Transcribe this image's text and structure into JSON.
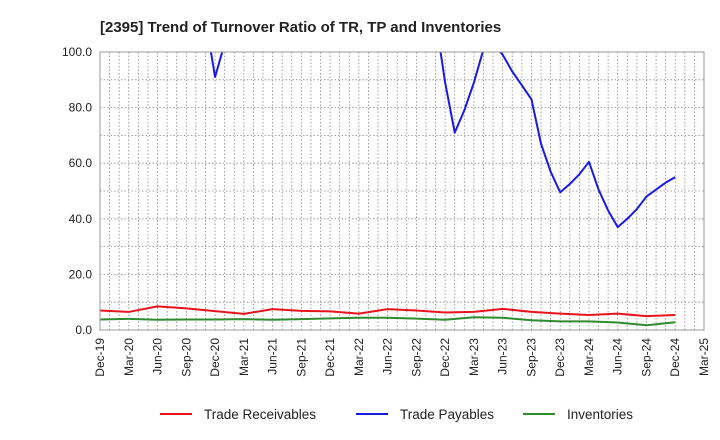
{
  "chart_data": {
    "type": "line",
    "title": "[2395]  Trend of Turnover Ratio of TR, TP and Inventories",
    "xlabel": "",
    "ylabel": "",
    "ylim": [
      0,
      100
    ],
    "yticks": [
      "0.0",
      "20.0",
      "40.0",
      "60.0",
      "80.0",
      "100.0"
    ],
    "xticks": [
      "Dec-19",
      "Mar-20",
      "Jun-20",
      "Sep-20",
      "Dec-20",
      "Mar-21",
      "Jun-21",
      "Sep-21",
      "Dec-21",
      "Mar-22",
      "Jun-22",
      "Sep-22",
      "Dec-22",
      "Mar-23",
      "Jun-23",
      "Sep-23",
      "Dec-23",
      "Mar-24",
      "Jun-24",
      "Sep-24",
      "Dec-24",
      "Mar-25"
    ],
    "grid": true,
    "legend_position": "bottom",
    "x": [
      "Dec-19",
      "Jan-20",
      "Feb-20",
      "Mar-20",
      "Apr-20",
      "May-20",
      "Jun-20",
      "Jul-20",
      "Aug-20",
      "Sep-20",
      "Oct-20",
      "Nov-20",
      "Dec-20",
      "Jan-21",
      "Feb-21",
      "Mar-21",
      "Apr-21",
      "May-21",
      "Jun-21",
      "Jul-21",
      "Aug-21",
      "Sep-21",
      "Oct-21",
      "Nov-21",
      "Dec-21",
      "Jan-22",
      "Feb-22",
      "Mar-22",
      "Apr-22",
      "May-22",
      "Jun-22",
      "Jul-22",
      "Aug-22",
      "Sep-22",
      "Oct-22",
      "Nov-22",
      "Dec-22",
      "Jan-23",
      "Feb-23",
      "Mar-23",
      "Apr-23",
      "May-23",
      "Jun-23",
      "Jul-23",
      "Aug-23",
      "Sep-23",
      "Oct-23",
      "Nov-23",
      "Dec-23",
      "Jan-24",
      "Feb-24",
      "Mar-24",
      "Apr-24",
      "May-24",
      "Jun-24",
      "Jul-24",
      "Aug-24",
      "Sep-24",
      "Oct-24",
      "Nov-24",
      "Dec-24",
      "Jan-25",
      "Feb-25",
      "Mar-25"
    ],
    "series": [
      {
        "name": "Trade Receivables",
        "color": "#e8141c",
        "values": [
          7.0,
          null,
          null,
          6.5,
          null,
          null,
          8.5,
          null,
          null,
          7.8,
          null,
          null,
          6.8,
          null,
          null,
          5.8,
          null,
          null,
          7.5,
          null,
          null,
          6.9,
          null,
          null,
          6.7,
          null,
          null,
          5.9,
          null,
          null,
          7.5,
          null,
          null,
          7.0,
          null,
          null,
          6.3,
          null,
          null,
          6.5,
          null,
          null,
          7.6,
          null,
          null,
          6.5,
          null,
          null,
          5.9,
          null,
          null,
          5.4,
          null,
          null,
          5.9,
          null,
          null,
          5.0,
          null,
          null,
          5.4,
          null,
          null,
          null
        ]
      },
      {
        "name": "Trade Payables",
        "color": "#1a1ae6",
        "values": [
          null,
          null,
          null,
          null,
          null,
          null,
          null,
          null,
          null,
          null,
          null,
          112,
          91,
          103,
          124,
          null,
          null,
          null,
          null,
          null,
          null,
          null,
          null,
          null,
          null,
          null,
          null,
          null,
          null,
          null,
          null,
          null,
          null,
          null,
          null,
          112,
          89,
          71,
          79,
          89,
          101,
          103,
          99,
          93,
          88,
          83,
          67,
          57,
          49.5,
          52.5,
          56,
          60.5,
          50.5,
          43,
          37,
          40,
          43.5,
          48,
          50.5,
          53,
          55,
          null,
          null,
          null
        ]
      },
      {
        "name": "Inventories",
        "color": "#2e8b2e",
        "values": [
          3.8,
          null,
          null,
          4.0,
          null,
          null,
          3.7,
          null,
          null,
          3.8,
          null,
          null,
          3.8,
          null,
          null,
          3.9,
          null,
          null,
          3.7,
          null,
          null,
          3.9,
          null,
          null,
          4.2,
          null,
          null,
          4.4,
          null,
          null,
          4.4,
          null,
          null,
          4.1,
          null,
          null,
          3.7,
          null,
          null,
          4.6,
          null,
          null,
          4.4,
          null,
          null,
          3.5,
          null,
          null,
          3.1,
          null,
          null,
          3.1,
          null,
          null,
          2.7,
          null,
          null,
          1.7,
          null,
          null,
          2.8,
          null,
          null,
          null
        ]
      }
    ]
  }
}
